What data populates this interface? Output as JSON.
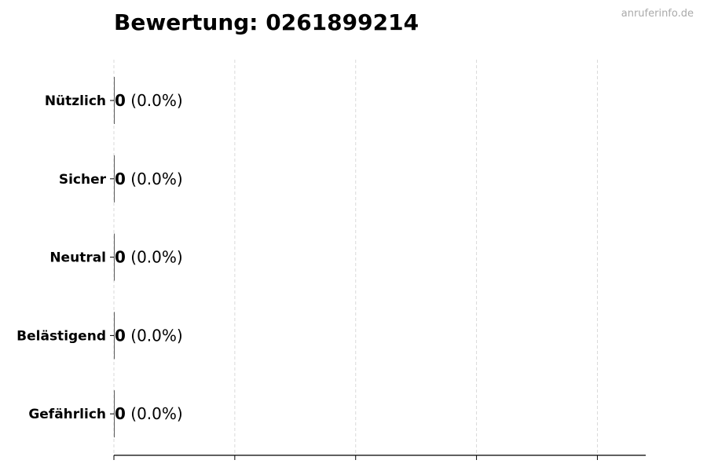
{
  "chart_data": {
    "type": "bar",
    "orientation": "horizontal",
    "title": "Bewertung: 0261899214",
    "categories": [
      "Nützlich",
      "Sicher",
      "Neutral",
      "Belästigend",
      "Gefährlich"
    ],
    "values": [
      0,
      0,
      0,
      0,
      0
    ],
    "labels": [
      {
        "count": "0",
        "pct": "(0.0%)"
      },
      {
        "count": "0",
        "pct": "(0.0%)"
      },
      {
        "count": "0",
        "pct": "(0.0%)"
      },
      {
        "count": "0",
        "pct": "(0.0%)"
      },
      {
        "count": "0",
        "pct": "(0.0%)"
      }
    ],
    "xticks": [
      0,
      1,
      2,
      3,
      4
    ],
    "xlim": [
      0,
      4.4
    ],
    "xtick_labels_shown": false,
    "grid": "x-dashed",
    "colors": {
      "grid": "#d9d9d9",
      "axis": "#000000",
      "bar": "#333333"
    }
  },
  "watermark": "anruferinfo.de"
}
